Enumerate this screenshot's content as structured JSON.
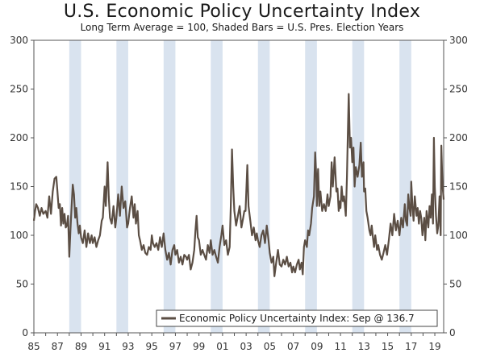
{
  "chart_data": {
    "type": "line",
    "title": "U.S. Economic Policy Uncertainty Index",
    "subtitle": "Long Term Average = 100, Shaded Bars = U.S. Pres. Election Years",
    "xlabel": "",
    "ylabel": "",
    "x_range": [
      1985,
      2019.75
    ],
    "ylim": [
      0,
      300
    ],
    "y_ticks": [
      0,
      50,
      100,
      150,
      200,
      250,
      300
    ],
    "x_ticks": [
      {
        "year": 1985,
        "label": "85"
      },
      {
        "year": 1987,
        "label": "87"
      },
      {
        "year": 1989,
        "label": "89"
      },
      {
        "year": 1991,
        "label": "91"
      },
      {
        "year": 1993,
        "label": "93"
      },
      {
        "year": 1995,
        "label": "95"
      },
      {
        "year": 1997,
        "label": "97"
      },
      {
        "year": 1999,
        "label": "99"
      },
      {
        "year": 2001,
        "label": "01"
      },
      {
        "year": 2003,
        "label": "03"
      },
      {
        "year": 2005,
        "label": "05"
      },
      {
        "year": 2007,
        "label": "07"
      },
      {
        "year": 2009,
        "label": "09"
      },
      {
        "year": 2011,
        "label": "11"
      },
      {
        "year": 2013,
        "label": "13"
      },
      {
        "year": 2015,
        "label": "15"
      },
      {
        "year": 2017,
        "label": "17"
      },
      {
        "year": 2019,
        "label": "19"
      }
    ],
    "shaded_years": [
      1988,
      1992,
      1996,
      2000,
      2004,
      2008,
      2012,
      2016
    ],
    "legend_position": "bottom-right",
    "series": [
      {
        "name": "Economic Policy Uncertainty Index: Sep @ 136.7",
        "color": "#5b4e44",
        "points": [
          [
            1985.0,
            115
          ],
          [
            1985.1,
            125
          ],
          [
            1985.2,
            132
          ],
          [
            1985.35,
            128
          ],
          [
            1985.5,
            120
          ],
          [
            1985.65,
            128
          ],
          [
            1985.8,
            122
          ],
          [
            1986.0,
            125
          ],
          [
            1986.15,
            118
          ],
          [
            1986.3,
            140
          ],
          [
            1986.45,
            122
          ],
          [
            1986.6,
            145
          ],
          [
            1986.75,
            158
          ],
          [
            1986.9,
            160
          ],
          [
            1987.0,
            145
          ],
          [
            1987.1,
            128
          ],
          [
            1987.2,
            132
          ],
          [
            1987.3,
            110
          ],
          [
            1987.4,
            128
          ],
          [
            1987.5,
            112
          ],
          [
            1987.6,
            122
          ],
          [
            1987.7,
            108
          ],
          [
            1987.8,
            110
          ],
          [
            1987.9,
            120
          ],
          [
            1988.0,
            78
          ],
          [
            1988.1,
            105
          ],
          [
            1988.2,
            130
          ],
          [
            1988.3,
            152
          ],
          [
            1988.4,
            142
          ],
          [
            1988.5,
            118
          ],
          [
            1988.6,
            128
          ],
          [
            1988.7,
            112
          ],
          [
            1988.8,
            102
          ],
          [
            1988.9,
            110
          ],
          [
            1989.0,
            98
          ],
          [
            1989.15,
            92
          ],
          [
            1989.3,
            105
          ],
          [
            1989.45,
            88
          ],
          [
            1989.6,
            102
          ],
          [
            1989.75,
            92
          ],
          [
            1989.9,
            100
          ],
          [
            1990.0,
            92
          ],
          [
            1990.15,
            98
          ],
          [
            1990.3,
            88
          ],
          [
            1990.45,
            95
          ],
          [
            1990.6,
            100
          ],
          [
            1990.75,
            115
          ],
          [
            1990.85,
            118
          ],
          [
            1991.0,
            150
          ],
          [
            1991.1,
            130
          ],
          [
            1991.25,
            175
          ],
          [
            1991.35,
            140
          ],
          [
            1991.45,
            118
          ],
          [
            1991.6,
            112
          ],
          [
            1991.75,
            130
          ],
          [
            1991.9,
            108
          ],
          [
            1992.0,
            118
          ],
          [
            1992.15,
            142
          ],
          [
            1992.3,
            120
          ],
          [
            1992.45,
            150
          ],
          [
            1992.6,
            128
          ],
          [
            1992.75,
            135
          ],
          [
            1992.9,
            108
          ],
          [
            1993.0,
            112
          ],
          [
            1993.15,
            128
          ],
          [
            1993.3,
            140
          ],
          [
            1993.45,
            118
          ],
          [
            1993.55,
            132
          ],
          [
            1993.65,
            112
          ],
          [
            1993.8,
            125
          ],
          [
            1993.9,
            100
          ],
          [
            1994.0,
            95
          ],
          [
            1994.15,
            85
          ],
          [
            1994.3,
            90
          ],
          [
            1994.45,
            82
          ],
          [
            1994.6,
            80
          ],
          [
            1994.75,
            88
          ],
          [
            1994.9,
            85
          ],
          [
            1995.0,
            100
          ],
          [
            1995.1,
            92
          ],
          [
            1995.25,
            88
          ],
          [
            1995.4,
            92
          ],
          [
            1995.55,
            85
          ],
          [
            1995.7,
            98
          ],
          [
            1995.85,
            88
          ],
          [
            1996.0,
            102
          ],
          [
            1996.15,
            85
          ],
          [
            1996.3,
            75
          ],
          [
            1996.45,
            82
          ],
          [
            1996.6,
            70
          ],
          [
            1996.75,
            85
          ],
          [
            1996.9,
            90
          ],
          [
            1997.0,
            80
          ],
          [
            1997.15,
            85
          ],
          [
            1997.3,
            72
          ],
          [
            1997.45,
            78
          ],
          [
            1997.6,
            70
          ],
          [
            1997.75,
            80
          ],
          [
            1997.9,
            78
          ],
          [
            1998.0,
            75
          ],
          [
            1998.15,
            80
          ],
          [
            1998.3,
            65
          ],
          [
            1998.45,
            72
          ],
          [
            1998.6,
            85
          ],
          [
            1998.7,
            105
          ],
          [
            1998.8,
            120
          ],
          [
            1998.9,
            98
          ],
          [
            1999.0,
            95
          ],
          [
            1999.15,
            80
          ],
          [
            1999.3,
            85
          ],
          [
            1999.45,
            80
          ],
          [
            1999.6,
            75
          ],
          [
            1999.75,
            90
          ],
          [
            1999.9,
            82
          ],
          [
            2000.0,
            95
          ],
          [
            2000.15,
            80
          ],
          [
            2000.3,
            85
          ],
          [
            2000.45,
            78
          ],
          [
            2000.6,
            72
          ],
          [
            2000.75,
            88
          ],
          [
            2000.9,
            100
          ],
          [
            2001.0,
            110
          ],
          [
            2001.15,
            90
          ],
          [
            2001.3,
            95
          ],
          [
            2001.45,
            80
          ],
          [
            2001.6,
            88
          ],
          [
            2001.7,
            130
          ],
          [
            2001.8,
            188
          ],
          [
            2001.9,
            150
          ],
          [
            2002.0,
            125
          ],
          [
            2002.15,
            110
          ],
          [
            2002.3,
            120
          ],
          [
            2002.45,
            130
          ],
          [
            2002.6,
            108
          ],
          [
            2002.75,
            118
          ],
          [
            2002.85,
            125
          ],
          [
            2002.95,
            125
          ],
          [
            2003.1,
            172
          ],
          [
            2003.2,
            130
          ],
          [
            2003.35,
            115
          ],
          [
            2003.5,
            100
          ],
          [
            2003.65,
            108
          ],
          [
            2003.8,
            95
          ],
          [
            2003.9,
            102
          ],
          [
            2004.0,
            95
          ],
          [
            2004.15,
            88
          ],
          [
            2004.3,
            100
          ],
          [
            2004.45,
            105
          ],
          [
            2004.6,
            92
          ],
          [
            2004.75,
            110
          ],
          [
            2004.9,
            95
          ],
          [
            2005.0,
            82
          ],
          [
            2005.15,
            72
          ],
          [
            2005.3,
            78
          ],
          [
            2005.4,
            58
          ],
          [
            2005.55,
            72
          ],
          [
            2005.7,
            85
          ],
          [
            2005.85,
            70
          ],
          [
            2006.0,
            68
          ],
          [
            2006.15,
            75
          ],
          [
            2006.3,
            70
          ],
          [
            2006.45,
            78
          ],
          [
            2006.6,
            68
          ],
          [
            2006.75,
            72
          ],
          [
            2006.9,
            62
          ],
          [
            2007.0,
            68
          ],
          [
            2007.15,
            62
          ],
          [
            2007.3,
            70
          ],
          [
            2007.45,
            75
          ],
          [
            2007.55,
            65
          ],
          [
            2007.7,
            72
          ],
          [
            2007.8,
            60
          ],
          [
            2007.9,
            88
          ],
          [
            2008.0,
            95
          ],
          [
            2008.15,
            88
          ],
          [
            2008.25,
            105
          ],
          [
            2008.35,
            100
          ],
          [
            2008.5,
            112
          ],
          [
            2008.6,
            128
          ],
          [
            2008.75,
            140
          ],
          [
            2008.85,
            185
          ],
          [
            2008.95,
            160
          ],
          [
            2009.0,
            130
          ],
          [
            2009.1,
            168
          ],
          [
            2009.2,
            130
          ],
          [
            2009.3,
            145
          ],
          [
            2009.45,
            125
          ],
          [
            2009.6,
            132
          ],
          [
            2009.75,
            125
          ],
          [
            2009.9,
            142
          ],
          [
            2010.0,
            130
          ],
          [
            2010.15,
            140
          ],
          [
            2010.25,
            175
          ],
          [
            2010.35,
            150
          ],
          [
            2010.5,
            180
          ],
          [
            2010.65,
            145
          ],
          [
            2010.75,
            148
          ],
          [
            2010.85,
            125
          ],
          [
            2010.95,
            135
          ],
          [
            2011.0,
            128
          ],
          [
            2011.1,
            150
          ],
          [
            2011.2,
            135
          ],
          [
            2011.3,
            140
          ],
          [
            2011.45,
            120
          ],
          [
            2011.55,
            160
          ],
          [
            2011.62,
            200
          ],
          [
            2011.7,
            245
          ],
          [
            2011.8,
            190
          ],
          [
            2011.9,
            200
          ],
          [
            2012.0,
            175
          ],
          [
            2012.1,
            190
          ],
          [
            2012.2,
            150
          ],
          [
            2012.3,
            170
          ],
          [
            2012.45,
            160
          ],
          [
            2012.6,
            172
          ],
          [
            2012.72,
            195
          ],
          [
            2012.82,
            160
          ],
          [
            2012.95,
            175
          ],
          [
            2013.0,
            145
          ],
          [
            2013.1,
            148
          ],
          [
            2013.2,
            125
          ],
          [
            2013.3,
            118
          ],
          [
            2013.45,
            105
          ],
          [
            2013.55,
            100
          ],
          [
            2013.65,
            110
          ],
          [
            2013.75,
            98
          ],
          [
            2013.85,
            88
          ],
          [
            2013.95,
            100
          ],
          [
            2014.1,
            85
          ],
          [
            2014.2,
            90
          ],
          [
            2014.35,
            80
          ],
          [
            2014.5,
            75
          ],
          [
            2014.65,
            82
          ],
          [
            2014.8,
            90
          ],
          [
            2014.95,
            80
          ],
          [
            2015.1,
            95
          ],
          [
            2015.25,
            112
          ],
          [
            2015.4,
            100
          ],
          [
            2015.55,
            122
          ],
          [
            2015.7,
            105
          ],
          [
            2015.85,
            115
          ],
          [
            2016.0,
            100
          ],
          [
            2016.15,
            118
          ],
          [
            2016.3,
            108
          ],
          [
            2016.45,
            132
          ],
          [
            2016.55,
            115
          ],
          [
            2016.65,
            110
          ],
          [
            2016.75,
            142
          ],
          [
            2016.85,
            128
          ],
          [
            2016.95,
            120
          ],
          [
            2017.0,
            155
          ],
          [
            2017.1,
            130
          ],
          [
            2017.2,
            115
          ],
          [
            2017.3,
            140
          ],
          [
            2017.45,
            120
          ],
          [
            2017.55,
            128
          ],
          [
            2017.65,
            112
          ],
          [
            2017.75,
            125
          ],
          [
            2017.85,
            118
          ],
          [
            2017.95,
            100
          ],
          [
            2018.1,
            118
          ],
          [
            2018.2,
            95
          ],
          [
            2018.3,
            125
          ],
          [
            2018.45,
            108
          ],
          [
            2018.55,
            130
          ],
          [
            2018.65,
            118
          ],
          [
            2018.75,
            142
          ],
          [
            2018.85,
            112
          ],
          [
            2018.92,
            200
          ],
          [
            2019.0,
            150
          ],
          [
            2019.1,
            120
          ],
          [
            2019.2,
            102
          ],
          [
            2019.3,
            110
          ],
          [
            2019.4,
            140
          ],
          [
            2019.5,
            100
          ],
          [
            2019.55,
            192
          ],
          [
            2019.65,
            152
          ],
          [
            2019.75,
            136.7
          ]
        ]
      }
    ]
  },
  "legend": {
    "label": "Economic Policy Uncertainty Index: Sep @ 136.7"
  }
}
